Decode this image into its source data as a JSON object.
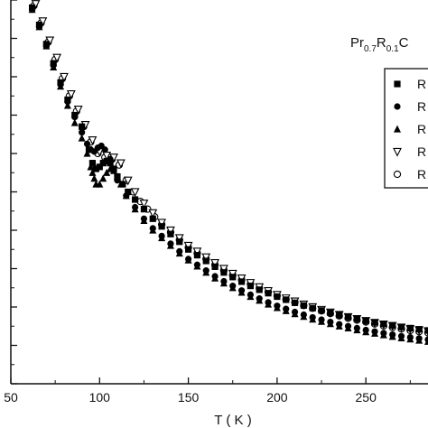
{
  "chart_data": {
    "type": "scatter",
    "title": "",
    "xlabel": "T ( K )",
    "ylabel": "",
    "xlim": [
      50,
      285
    ],
    "ylim": [
      0,
      1
    ],
    "x_ticks": [
      "50",
      "100",
      "150",
      "200",
      "250"
    ],
    "grid": false,
    "legend_placement": "right",
    "compound_label": {
      "a": "Pr",
      "a_sub": "0.7",
      "b": "R",
      "b_sub": "0.1",
      "c": "C"
    },
    "series": [
      {
        "name": "R",
        "marker": "square",
        "x": [
          62,
          66,
          70,
          74,
          78,
          82,
          86,
          90,
          94,
          96,
          98,
          100,
          102,
          104,
          106,
          108,
          110,
          113,
          116,
          120,
          125,
          130,
          135,
          140,
          145,
          150,
          155,
          160,
          165,
          170,
          175,
          180,
          185,
          190,
          195,
          200,
          205,
          210,
          215,
          220,
          225,
          230,
          235,
          240,
          245,
          250,
          255,
          260,
          265,
          270,
          275,
          280,
          285
        ],
        "y": [
          0.98,
          0.935,
          0.885,
          0.835,
          0.785,
          0.74,
          0.7,
          0.67,
          0.61,
          0.575,
          0.56,
          0.565,
          0.575,
          0.58,
          0.575,
          0.56,
          0.54,
          0.52,
          0.5,
          0.48,
          0.455,
          0.43,
          0.41,
          0.39,
          0.37,
          0.35,
          0.335,
          0.32,
          0.305,
          0.29,
          0.278,
          0.266,
          0.255,
          0.245,
          0.236,
          0.227,
          0.219,
          0.211,
          0.204,
          0.197,
          0.191,
          0.185,
          0.179,
          0.174,
          0.169,
          0.164,
          0.16,
          0.156,
          0.152,
          0.148,
          0.145,
          0.142,
          0.139
        ]
      },
      {
        "name": "R",
        "marker": "circle",
        "x": [
          62,
          66,
          70,
          74,
          78,
          82,
          86,
          90,
          93,
          95,
          97,
          99,
          101,
          103,
          106,
          110,
          115,
          120,
          125,
          130,
          135,
          140,
          145,
          150,
          155,
          160,
          165,
          170,
          175,
          180,
          185,
          190,
          195,
          200,
          205,
          210,
          215,
          220,
          225,
          230,
          235,
          240,
          245,
          250,
          255,
          260,
          265,
          270,
          275,
          280,
          285
        ],
        "y": [
          0.975,
          0.93,
          0.88,
          0.83,
          0.78,
          0.735,
          0.695,
          0.655,
          0.625,
          0.61,
          0.605,
          0.615,
          0.62,
          0.61,
          0.585,
          0.53,
          0.49,
          0.46,
          0.43,
          0.405,
          0.385,
          0.365,
          0.345,
          0.325,
          0.31,
          0.295,
          0.28,
          0.267,
          0.255,
          0.243,
          0.232,
          0.222,
          0.212,
          0.203,
          0.195,
          0.187,
          0.18,
          0.173,
          0.167,
          0.161,
          0.155,
          0.15,
          0.145,
          0.14,
          0.136,
          0.132,
          0.128,
          0.124,
          0.121,
          0.118,
          0.115
        ]
      },
      {
        "name": "R",
        "marker": "triangle",
        "x": [
          62,
          66,
          70,
          74,
          78,
          82,
          86,
          90,
          93,
          95,
          96,
          97,
          98,
          100,
          102,
          104,
          106,
          108,
          110,
          112,
          115,
          120,
          125,
          130,
          135,
          140,
          145,
          150,
          155,
          160,
          165,
          170,
          175,
          180,
          185,
          190,
          195,
          200,
          205,
          210,
          215,
          220,
          225,
          230,
          235,
          240,
          245,
          250,
          255,
          260,
          265,
          270,
          275,
          280,
          285
        ],
        "y": [
          0.975,
          0.93,
          0.88,
          0.825,
          0.775,
          0.725,
          0.68,
          0.64,
          0.6,
          0.565,
          0.55,
          0.535,
          0.52,
          0.52,
          0.535,
          0.55,
          0.56,
          0.555,
          0.54,
          0.52,
          0.49,
          0.455,
          0.425,
          0.4,
          0.38,
          0.36,
          0.34,
          0.322,
          0.306,
          0.29,
          0.275,
          0.262,
          0.25,
          0.238,
          0.227,
          0.217,
          0.207,
          0.198,
          0.19,
          0.182,
          0.175,
          0.168,
          0.162,
          0.156,
          0.15,
          0.145,
          0.14,
          0.135,
          0.131,
          0.127,
          0.123,
          0.119,
          0.116,
          0.113,
          0.11
        ]
      },
      {
        "name": "R",
        "marker": "triangle-down-open",
        "x": [
          64,
          68,
          72,
          76,
          80,
          84,
          88,
          92,
          96,
          100,
          104,
          108,
          112,
          116,
          120,
          125,
          130,
          135,
          140,
          145,
          150,
          155,
          160,
          165,
          170,
          175,
          180,
          185,
          190,
          195,
          200,
          205,
          210,
          215,
          220,
          225,
          230,
          235,
          240,
          245,
          250,
          255,
          260,
          265,
          270,
          275,
          280,
          285
        ],
        "y": [
          0.99,
          0.945,
          0.895,
          0.85,
          0.8,
          0.755,
          0.715,
          0.675,
          0.635,
          0.605,
          0.595,
          0.59,
          0.575,
          0.53,
          0.5,
          0.47,
          0.445,
          0.42,
          0.4,
          0.38,
          0.36,
          0.345,
          0.33,
          0.315,
          0.3,
          0.287,
          0.275,
          0.263,
          0.252,
          0.242,
          0.232,
          0.223,
          0.215,
          0.207,
          0.2,
          0.193,
          0.186,
          0.18,
          0.174,
          0.169,
          0.164,
          0.159,
          0.155,
          0.151,
          0.147,
          0.143,
          0.14,
          0.137
        ]
      },
      {
        "name": "R",
        "marker": "circle-open",
        "x": [
          63,
          67,
          71,
          75,
          79,
          83,
          87,
          91,
          95,
          99,
          103,
          107,
          111,
          115,
          119,
          123,
          127,
          131,
          135,
          140,
          145,
          150,
          155,
          160,
          165,
          170,
          175,
          180,
          185,
          190,
          195,
          200,
          205,
          210,
          215,
          220,
          225,
          230,
          235,
          240,
          245,
          250,
          255,
          260,
          265,
          270,
          275,
          280,
          285
        ],
        "y": [
          0.985,
          0.94,
          0.89,
          0.845,
          0.795,
          0.75,
          0.71,
          0.67,
          0.63,
          0.6,
          0.59,
          0.585,
          0.57,
          0.53,
          0.5,
          0.475,
          0.455,
          0.435,
          0.415,
          0.395,
          0.375,
          0.355,
          0.34,
          0.325,
          0.31,
          0.296,
          0.283,
          0.271,
          0.26,
          0.249,
          0.239,
          0.229,
          0.22,
          0.212,
          0.204,
          0.197,
          0.19,
          0.183,
          0.177,
          0.171,
          0.166,
          0.161,
          0.156,
          0.151,
          0.147,
          0.143,
          0.139,
          0.136,
          0.133
        ]
      }
    ]
  }
}
